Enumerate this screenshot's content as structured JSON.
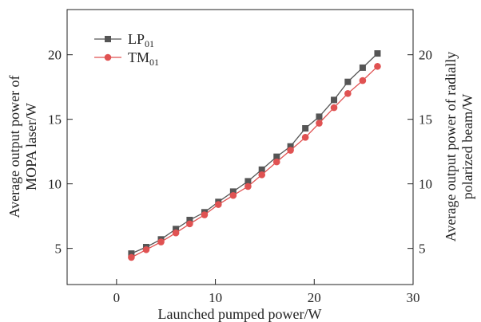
{
  "chart_data": {
    "type": "line",
    "xlabel": "Launched pumped power/W",
    "ylabel_left": [
      "Average output power of",
      "MOPA laser/W"
    ],
    "ylabel_right": [
      "Average output power of radially",
      "polarized beam/W"
    ],
    "xlim": [
      -5,
      30
    ],
    "ylim": [
      2.2,
      23.5
    ],
    "x_ticks": [
      0,
      10,
      20,
      30
    ],
    "y_ticks": [
      5,
      10,
      15,
      20
    ],
    "legend_position": "top-left",
    "x": [
      1.5,
      3.0,
      4.5,
      6.0,
      7.4,
      8.9,
      10.3,
      11.8,
      13.3,
      14.7,
      16.2,
      17.6,
      19.1,
      20.5,
      22.0,
      23.4,
      24.9,
      26.4
    ],
    "series": [
      {
        "name": "LP",
        "name_sub": "01",
        "color": "#555555",
        "marker": "square",
        "values": [
          4.6,
          5.1,
          5.7,
          6.5,
          7.2,
          7.8,
          8.6,
          9.4,
          10.2,
          11.1,
          12.1,
          12.9,
          14.3,
          15.2,
          16.5,
          17.9,
          19.0,
          20.1
        ]
      },
      {
        "name": "TM",
        "name_sub": "01",
        "color": "#e05252",
        "marker": "circle",
        "values": [
          4.3,
          4.9,
          5.5,
          6.2,
          6.9,
          7.6,
          8.4,
          9.1,
          9.8,
          10.7,
          11.7,
          12.6,
          13.6,
          14.7,
          15.9,
          17.0,
          18.0,
          19.1
        ]
      }
    ]
  }
}
